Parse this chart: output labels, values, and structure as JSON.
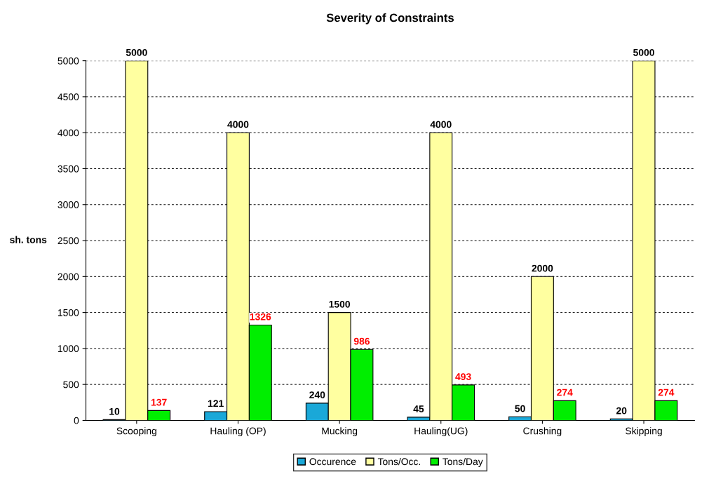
{
  "chart_data": {
    "type": "bar",
    "title": "Severity of Constraints",
    "ylabel": "sh. tons",
    "categories": [
      "Scooping",
      "Hauling (OP)",
      "Mucking",
      "Hauling(UG)",
      "Crushing",
      "Skipping"
    ],
    "series": [
      {
        "name": "Occurence",
        "color": "#1aa8d8",
        "values": [
          10,
          121,
          240,
          45,
          50,
          20
        ]
      },
      {
        "name": "Tons/Occ.",
        "color": "#ffffa0",
        "values": [
          5000,
          4000,
          1500,
          4000,
          2000,
          5000
        ]
      },
      {
        "name": "Tons/Day",
        "color": "#00ee00",
        "values": [
          137,
          1326,
          986,
          493,
          274,
          274
        ]
      }
    ],
    "ylim": [
      0,
      5000
    ],
    "yticks": [
      0,
      500,
      1000,
      1500,
      2000,
      2500,
      3000,
      3500,
      4000,
      4500,
      5000
    ],
    "grid": "y",
    "legend": "bottom",
    "data_labels": true
  }
}
